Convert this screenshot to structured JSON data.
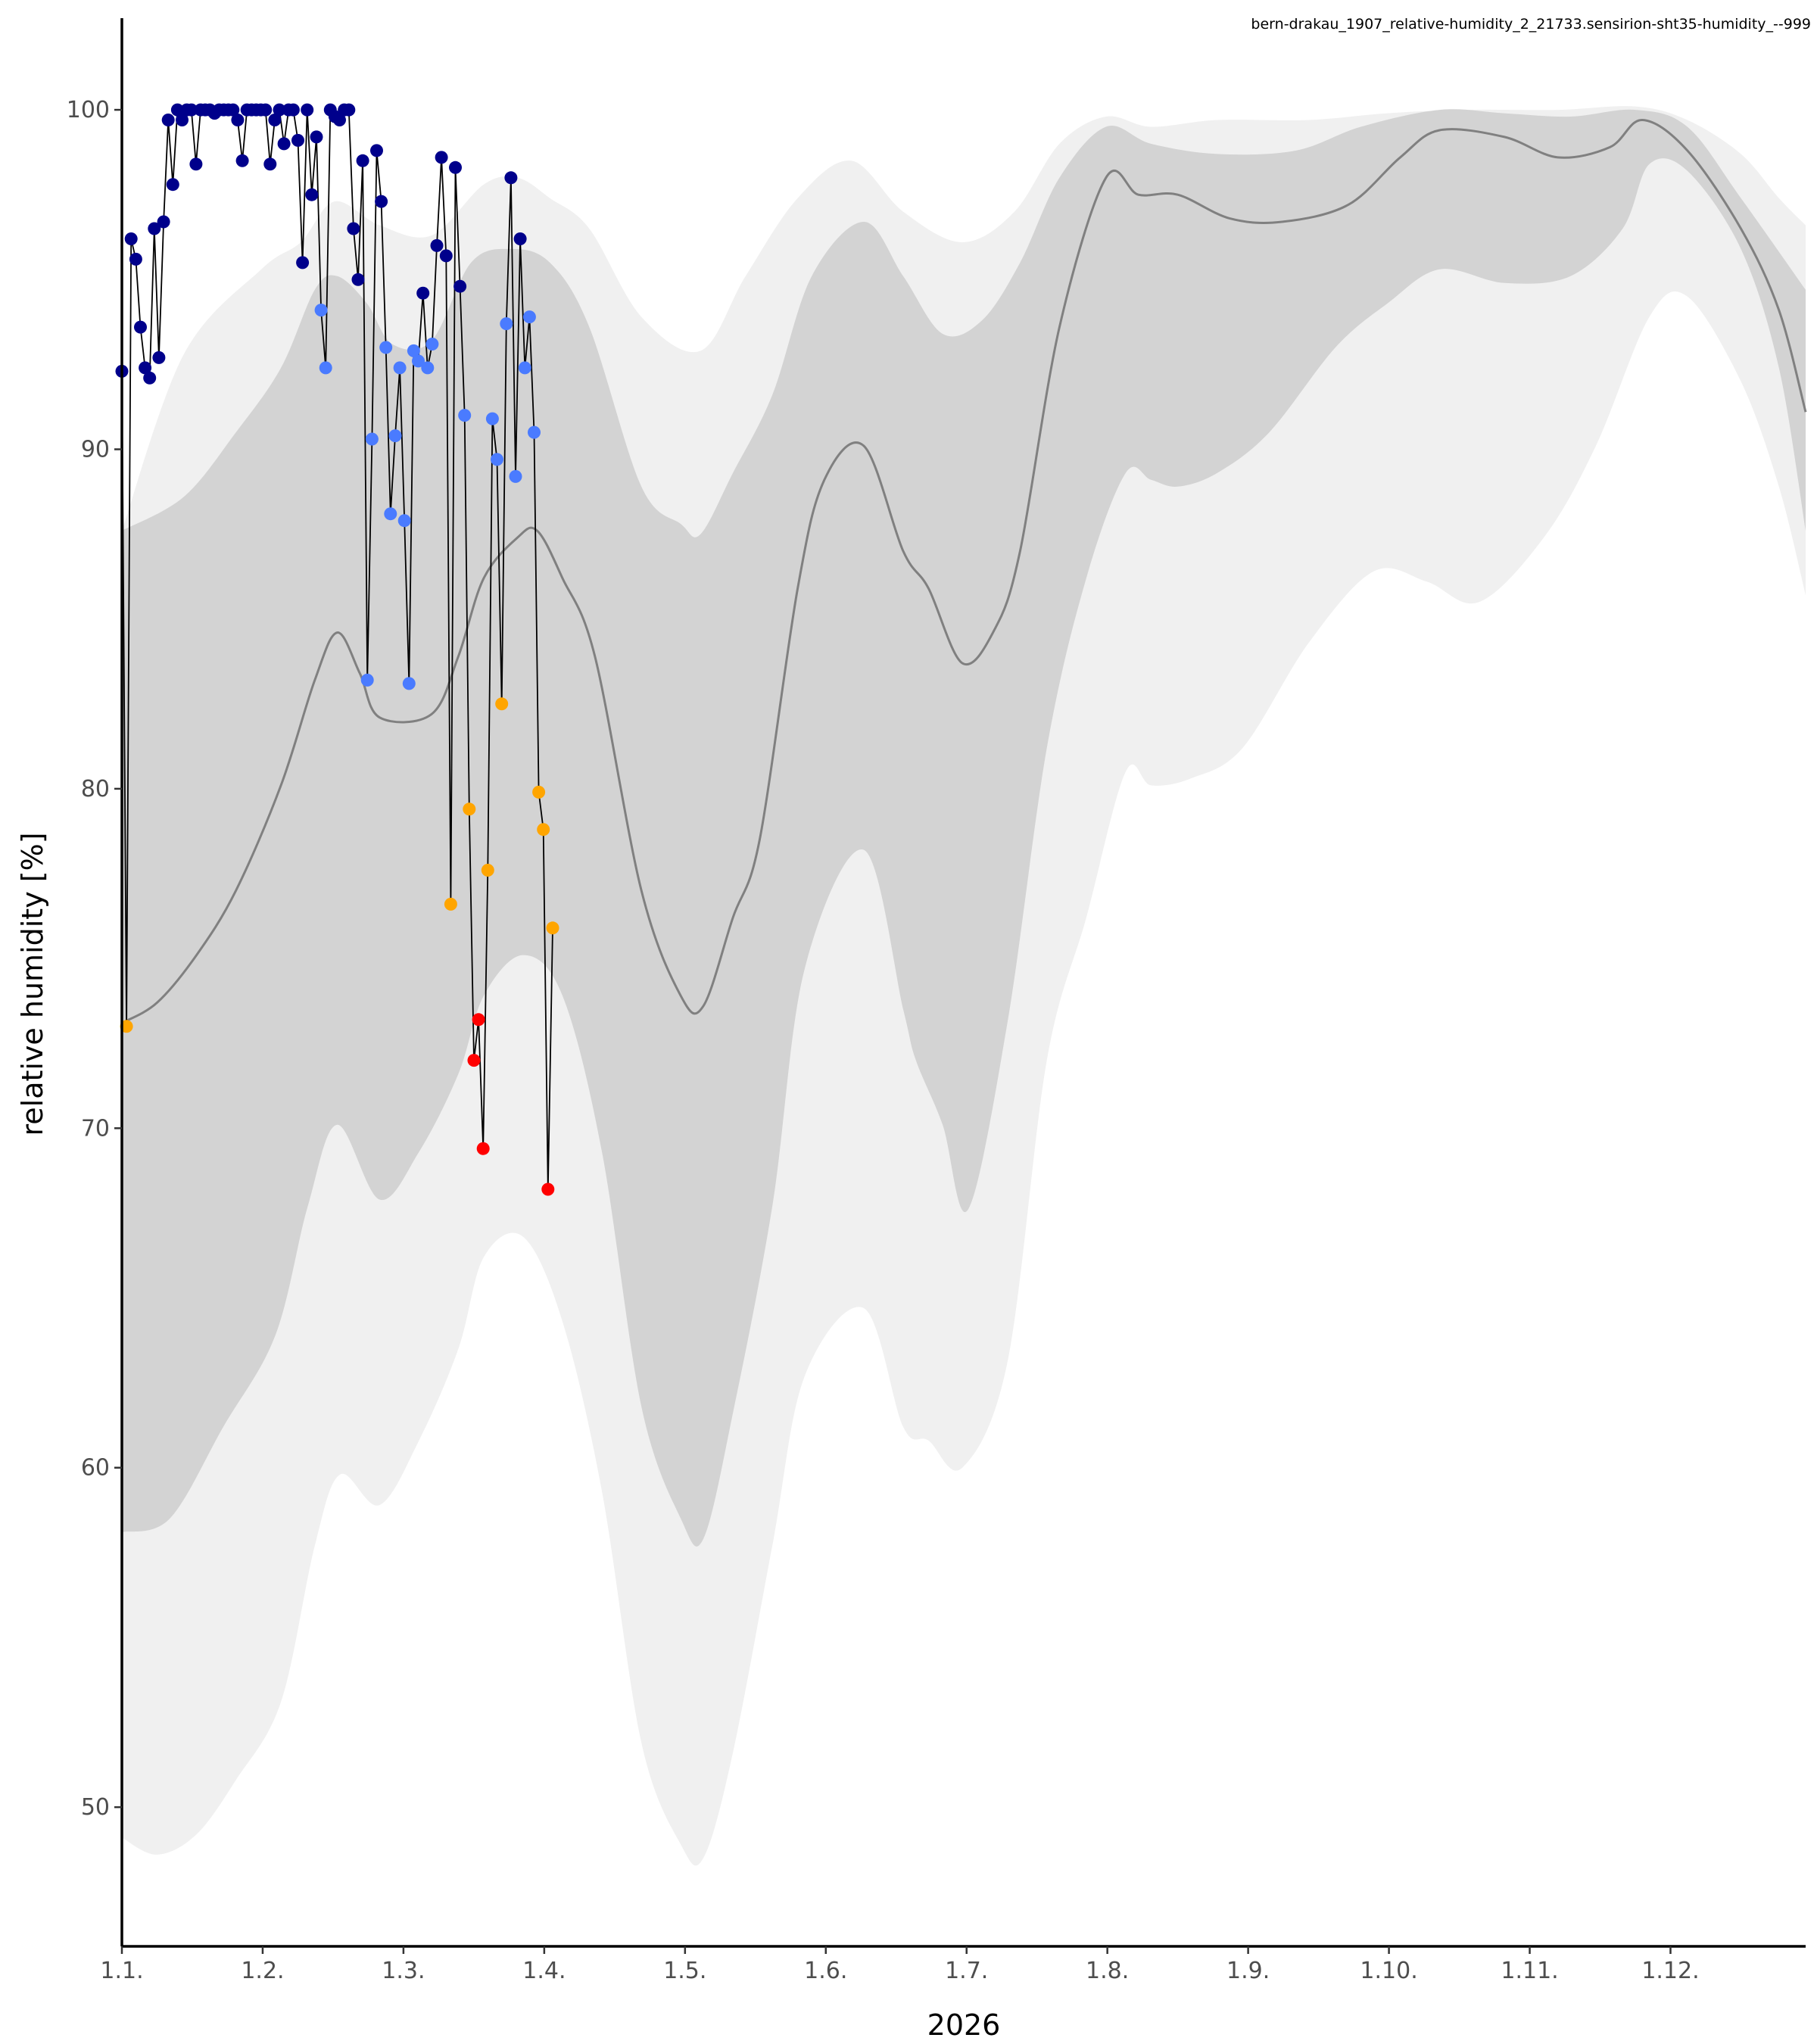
{
  "chart_data": {
    "type": "line",
    "title": "bern-drakau_1907_relative-humidity_2_21733.sensirion-sht35-humidity_--999",
    "xlabel": "2026",
    "ylabel": "relative humidity [%]",
    "x_unit": "months since 1 Jan 2026",
    "xlim": [
      0,
      11.96
    ],
    "ylim": [
      45.9,
      102.7
    ],
    "x_ticks": [
      0,
      1,
      2,
      3,
      4,
      5,
      6,
      7,
      8,
      9,
      10,
      11
    ],
    "x_tick_labels": [
      "1.1.",
      "1.2.",
      "1.3.",
      "1.4.",
      "1.5.",
      "1.6.",
      "1.7.",
      "1.8.",
      "1.9.",
      "1.10.",
      "1.11.",
      "1.12."
    ],
    "y_ticks": [
      50,
      60,
      70,
      80,
      90,
      100
    ],
    "y_tick_labels": [
      "50",
      "60",
      "70",
      "80",
      "90",
      "100"
    ],
    "grid": false,
    "colors": {
      "band_outer": "#f0f0f0",
      "band_inner": "#d3d3d3",
      "median": "#808080",
      "line": "#000000",
      "N": "#00008b",
      "LB": "#4a7bff",
      "O": "#ffa500",
      "R": "#ff0000"
    },
    "bands": {
      "outer_upper": [
        [
          0,
          87.6
        ],
        [
          0.44,
          92.8
        ],
        [
          0.99,
          95.3
        ],
        [
          1.27,
          96.1
        ],
        [
          1.51,
          97.3
        ],
        [
          1.83,
          96.6
        ],
        [
          2.2,
          96.3
        ],
        [
          2.57,
          97.8
        ],
        [
          2.81,
          98.0
        ],
        [
          3.04,
          97.4
        ],
        [
          3.32,
          96.5
        ],
        [
          3.69,
          93.9
        ],
        [
          4.11,
          92.9
        ],
        [
          4.43,
          95.1
        ],
        [
          4.8,
          97.4
        ],
        [
          5.18,
          98.5
        ],
        [
          5.55,
          97.0
        ],
        [
          5.97,
          96.1
        ],
        [
          6.34,
          97.0
        ],
        [
          6.66,
          99.0
        ],
        [
          6.99,
          99.8
        ],
        [
          7.31,
          99.5
        ],
        [
          7.78,
          99.7
        ],
        [
          8.43,
          99.7
        ],
        [
          8.99,
          99.9
        ],
        [
          9.54,
          100.0
        ],
        [
          10.2,
          100.0
        ],
        [
          10.75,
          100.1
        ],
        [
          11.12,
          99.7
        ],
        [
          11.5,
          98.7
        ],
        [
          11.77,
          97.4
        ],
        [
          11.96,
          96.6
        ]
      ],
      "inner_upper": [
        [
          0,
          87.6
        ],
        [
          0.44,
          88.6
        ],
        [
          0.81,
          90.5
        ],
        [
          1.13,
          92.4
        ],
        [
          1.37,
          94.7
        ],
        [
          1.53,
          95.1
        ],
        [
          1.74,
          94.3
        ],
        [
          1.92,
          93.1
        ],
        [
          2.2,
          93.2
        ],
        [
          2.48,
          95.5
        ],
        [
          2.76,
          95.9
        ],
        [
          3.04,
          95.5
        ],
        [
          3.32,
          93.6
        ],
        [
          3.69,
          88.9
        ],
        [
          3.97,
          87.8
        ],
        [
          4.11,
          87.5
        ],
        [
          4.34,
          89.3
        ],
        [
          4.62,
          91.6
        ],
        [
          4.9,
          95.1
        ],
        [
          5.27,
          96.7
        ],
        [
          5.55,
          95.1
        ],
        [
          5.83,
          93.4
        ],
        [
          6.11,
          93.8
        ],
        [
          6.38,
          95.5
        ],
        [
          6.66,
          98.0
        ],
        [
          6.99,
          99.5
        ],
        [
          7.31,
          99.0
        ],
        [
          7.78,
          98.7
        ],
        [
          8.34,
          98.8
        ],
        [
          8.8,
          99.5
        ],
        [
          9.36,
          100.0
        ],
        [
          9.82,
          99.9
        ],
        [
          10.29,
          99.8
        ],
        [
          10.75,
          100.0
        ],
        [
          11.12,
          99.5
        ],
        [
          11.5,
          97.4
        ],
        [
          11.96,
          94.7
        ]
      ],
      "median": [
        [
          0,
          73.1
        ],
        [
          0.25,
          73.7
        ],
        [
          0.53,
          75.1
        ],
        [
          0.81,
          77.0
        ],
        [
          1.13,
          80.1
        ],
        [
          1.37,
          83.2
        ],
        [
          1.53,
          84.6
        ],
        [
          1.69,
          83.4
        ],
        [
          1.83,
          82.1
        ],
        [
          2.2,
          82.2
        ],
        [
          2.39,
          83.9
        ],
        [
          2.57,
          86.2
        ],
        [
          2.81,
          87.4
        ],
        [
          2.95,
          87.6
        ],
        [
          3.13,
          86.2
        ],
        [
          3.36,
          83.9
        ],
        [
          3.69,
          77.0
        ],
        [
          3.97,
          73.9
        ],
        [
          4.13,
          73.6
        ],
        [
          4.34,
          76.2
        ],
        [
          4.53,
          78.5
        ],
        [
          4.8,
          85.9
        ],
        [
          4.99,
          89.1
        ],
        [
          5.27,
          90.1
        ],
        [
          5.55,
          87.0
        ],
        [
          5.73,
          85.9
        ],
        [
          5.97,
          83.7
        ],
        [
          6.2,
          84.7
        ],
        [
          6.38,
          87.0
        ],
        [
          6.66,
          93.6
        ],
        [
          6.99,
          98.0
        ],
        [
          7.22,
          97.5
        ],
        [
          7.5,
          97.5
        ],
        [
          7.87,
          96.8
        ],
        [
          8.24,
          96.7
        ],
        [
          8.71,
          97.2
        ],
        [
          9.08,
          98.6
        ],
        [
          9.36,
          99.4
        ],
        [
          9.82,
          99.2
        ],
        [
          10.2,
          98.6
        ],
        [
          10.57,
          98.9
        ],
        [
          10.8,
          99.7
        ],
        [
          11.12,
          98.8
        ],
        [
          11.5,
          96.5
        ],
        [
          11.77,
          94.1
        ],
        [
          11.96,
          91.1
        ]
      ],
      "inner_lower": [
        [
          0,
          58.1
        ],
        [
          0.34,
          58.5
        ],
        [
          0.72,
          61.2
        ],
        [
          1.09,
          63.9
        ],
        [
          1.32,
          67.7
        ],
        [
          1.53,
          70.1
        ],
        [
          1.83,
          67.9
        ],
        [
          2.11,
          69.3
        ],
        [
          2.39,
          71.6
        ],
        [
          2.57,
          73.9
        ],
        [
          2.85,
          75.1
        ],
        [
          3.13,
          73.9
        ],
        [
          3.41,
          69.3
        ],
        [
          3.69,
          61.8
        ],
        [
          3.97,
          58.5
        ],
        [
          4.13,
          57.9
        ],
        [
          4.34,
          61.6
        ],
        [
          4.62,
          67.7
        ],
        [
          4.85,
          74.7
        ],
        [
          5.27,
          78.2
        ],
        [
          5.55,
          73.5
        ],
        [
          5.64,
          72.0
        ],
        [
          5.83,
          70.1
        ],
        [
          6.01,
          67.6
        ],
        [
          6.29,
          73.1
        ],
        [
          6.57,
          81.2
        ],
        [
          6.85,
          86.2
        ],
        [
          7.13,
          89.3
        ],
        [
          7.31,
          89.1
        ],
        [
          7.5,
          88.9
        ],
        [
          7.78,
          89.3
        ],
        [
          8.15,
          90.5
        ],
        [
          8.62,
          93.0
        ],
        [
          8.99,
          94.3
        ],
        [
          9.36,
          95.3
        ],
        [
          9.82,
          94.9
        ],
        [
          10.29,
          95.1
        ],
        [
          10.66,
          96.5
        ],
        [
          10.85,
          98.4
        ],
        [
          11.12,
          98.2
        ],
        [
          11.5,
          95.9
        ],
        [
          11.77,
          92.4
        ],
        [
          11.96,
          87.6
        ]
      ],
      "outer_lower": [
        [
          0,
          49.1
        ],
        [
          0.25,
          48.6
        ],
        [
          0.53,
          49.2
        ],
        [
          0.81,
          50.8
        ],
        [
          1.13,
          53.1
        ],
        [
          1.37,
          57.7
        ],
        [
          1.55,
          59.8
        ],
        [
          1.83,
          58.9
        ],
        [
          2.11,
          60.8
        ],
        [
          2.39,
          63.5
        ],
        [
          2.57,
          66.2
        ],
        [
          2.85,
          66.8
        ],
        [
          3.13,
          64.3
        ],
        [
          3.41,
          59.3
        ],
        [
          3.69,
          51.9
        ],
        [
          3.97,
          48.9
        ],
        [
          4.13,
          48.5
        ],
        [
          4.34,
          51.6
        ],
        [
          4.62,
          57.7
        ],
        [
          4.85,
          62.7
        ],
        [
          5.27,
          64.7
        ],
        [
          5.55,
          61.2
        ],
        [
          5.73,
          60.8
        ],
        [
          5.97,
          60.0
        ],
        [
          6.29,
          63.1
        ],
        [
          6.57,
          72.0
        ],
        [
          6.85,
          76.2
        ],
        [
          7.13,
          80.5
        ],
        [
          7.31,
          80.1
        ],
        [
          7.59,
          80.3
        ],
        [
          7.96,
          81.2
        ],
        [
          8.43,
          84.3
        ],
        [
          8.89,
          86.4
        ],
        [
          9.27,
          86.1
        ],
        [
          9.64,
          85.5
        ],
        [
          10.1,
          87.4
        ],
        [
          10.47,
          90.1
        ],
        [
          10.85,
          93.9
        ],
        [
          11.12,
          94.5
        ],
        [
          11.5,
          92.0
        ],
        [
          11.77,
          88.9
        ],
        [
          11.96,
          85.7
        ]
      ]
    },
    "series": {
      "name": "relative humidity",
      "x_start": 0,
      "x_step": 0.0329,
      "values": [
        92.3,
        73.0,
        96.2,
        95.6,
        93.6,
        92.4,
        92.1,
        96.5,
        92.7,
        96.7,
        99.7,
        97.8,
        100,
        99.7,
        100,
        100,
        98.4,
        100,
        100,
        100,
        99.9,
        100,
        100,
        100,
        100,
        99.7,
        98.5,
        100,
        100,
        100,
        100,
        100,
        98.4,
        99.7,
        100,
        99.0,
        100,
        100,
        99.1,
        95.5,
        100,
        97.5,
        99.2,
        94.1,
        92.4,
        100,
        99.8,
        99.7,
        100,
        100,
        96.5,
        95.0,
        98.5,
        83.2,
        90.3,
        98.8,
        97.3,
        93.0,
        88.1,
        90.4,
        92.4,
        87.9,
        83.1,
        92.9,
        92.6,
        94.6,
        92.4,
        93.1,
        96.0,
        98.6,
        95.7,
        76.6,
        98.3,
        94.8,
        91.0,
        79.4,
        72.0,
        73.2,
        69.4,
        77.6,
        90.9,
        89.7,
        82.5,
        93.7,
        98.0,
        89.2,
        96.2,
        92.4,
        93.9,
        90.5,
        79.9,
        78.8,
        68.2,
        75.9
      ],
      "point_class": [
        "N",
        "O",
        "N",
        "N",
        "N",
        "N",
        "N",
        "N",
        "N",
        "N",
        "N",
        "N",
        "N",
        "N",
        "N",
        "N",
        "N",
        "N",
        "N",
        "N",
        "N",
        "N",
        "N",
        "N",
        "N",
        "N",
        "N",
        "N",
        "N",
        "N",
        "N",
        "N",
        "N",
        "N",
        "N",
        "N",
        "N",
        "N",
        "N",
        "N",
        "N",
        "N",
        "N",
        "LB",
        "LB",
        "N",
        "N",
        "N",
        "N",
        "N",
        "N",
        "N",
        "N",
        "LB",
        "LB",
        "N",
        "N",
        "LB",
        "LB",
        "LB",
        "LB",
        "LB",
        "LB",
        "LB",
        "LB",
        "N",
        "LB",
        "LB",
        "N",
        "N",
        "N",
        "O",
        "N",
        "N",
        "LB",
        "O",
        "R",
        "R",
        "R",
        "O",
        "LB",
        "LB",
        "O",
        "LB",
        "N",
        "LB",
        "N",
        "LB",
        "LB",
        "LB",
        "O",
        "O",
        "R",
        "O"
      ]
    }
  }
}
